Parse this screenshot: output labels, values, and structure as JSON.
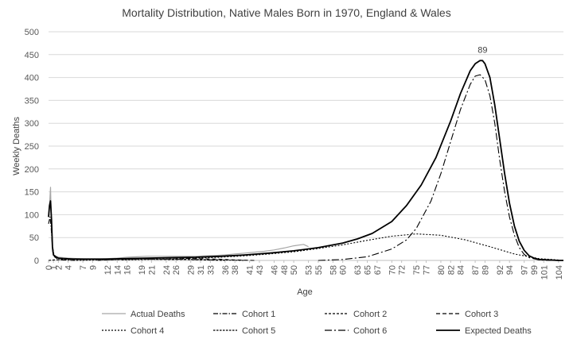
{
  "chart_data": {
    "type": "line",
    "title": "Mortality Distribution, Native Males Born in 1970, England & Wales",
    "xlabel": "Age",
    "ylabel": "Weekly Deaths",
    "xlim": [
      0,
      105
    ],
    "ylim": [
      0,
      500
    ],
    "yticks": [
      0,
      50,
      100,
      150,
      200,
      250,
      300,
      350,
      400,
      450,
      500
    ],
    "xticks": [
      0,
      1,
      2,
      4,
      7,
      9,
      12,
      14,
      16,
      19,
      21,
      24,
      26,
      29,
      31,
      33,
      36,
      38,
      41,
      43,
      46,
      48,
      50,
      53,
      55,
      58,
      60,
      63,
      65,
      67,
      70,
      72,
      75,
      77,
      80,
      82,
      84,
      87,
      89,
      92,
      94,
      97,
      99,
      101,
      104
    ],
    "grid": true,
    "legend_position": "bottom",
    "annotations": [
      {
        "text": "89",
        "x": 88.5,
        "y": 437
      }
    ],
    "colors": {
      "actual": "#a6a6a6",
      "lines": "#000000",
      "grid": "#d9d9d9",
      "axis": "#bfbfbf"
    },
    "series": [
      {
        "name": "Actual Deaths",
        "style": "solid-grey",
        "x": [
          0,
          0.2,
          0.4,
          0.6,
          0.8,
          1.0,
          1.5,
          2,
          3,
          4,
          6,
          8,
          10,
          12,
          14,
          16,
          18,
          20,
          22,
          24,
          26,
          28,
          30,
          32,
          34,
          36,
          38,
          40,
          42,
          44,
          46,
          48,
          50,
          52,
          53
        ],
        "y": [
          95,
          120,
          160,
          70,
          20,
          12,
          9,
          7,
          6,
          5,
          4,
          3,
          3,
          4,
          5,
          7,
          8,
          9,
          9,
          9,
          9,
          9,
          9,
          10,
          11,
          12,
          14,
          16,
          18,
          20,
          23,
          27,
          32,
          35,
          30
        ]
      },
      {
        "name": "Cohort 1",
        "style": "dash-dot",
        "x": [
          0,
          0.3,
          0.5,
          0.8,
          1.2,
          2,
          3,
          5
        ],
        "y": [
          80,
          95,
          75,
          30,
          8,
          2,
          1,
          0
        ]
      },
      {
        "name": "Cohort 2",
        "style": "short-dash",
        "x": [
          0,
          1,
          3,
          5,
          8,
          12,
          16,
          20,
          24,
          28,
          32,
          36
        ],
        "y": [
          0,
          1,
          2,
          2,
          2,
          3,
          3,
          3,
          2,
          2,
          1,
          0
        ]
      },
      {
        "name": "Cohort 3",
        "style": "long-dash",
        "x": [
          10,
          14,
          18,
          22,
          26,
          30,
          34,
          38,
          42
        ],
        "y": [
          0,
          2,
          4,
          5,
          5,
          4,
          3,
          1,
          0
        ]
      },
      {
        "name": "Cohort 4",
        "style": "dotted",
        "x": [
          15,
          20,
          25,
          30,
          35,
          40,
          45,
          50,
          55,
          60,
          65,
          70,
          75,
          80,
          85,
          90,
          95,
          100,
          104
        ],
        "y": [
          1,
          2,
          3,
          5,
          7,
          10,
          14,
          19,
          26,
          34,
          44,
          53,
          58,
          55,
          45,
          30,
          14,
          4,
          1
        ]
      },
      {
        "name": "Cohort 5",
        "style": "fine-dash",
        "x": [
          5,
          10,
          15,
          20,
          25,
          30,
          35,
          40
        ],
        "y": [
          0,
          1,
          2,
          3,
          3,
          2,
          1,
          0
        ]
      },
      {
        "name": "Cohort 6",
        "style": "dash-dot-long",
        "x": [
          55,
          60,
          65,
          70,
          73,
          75,
          78,
          80,
          82,
          84,
          86,
          87,
          88,
          89,
          90,
          91,
          92,
          93,
          94,
          95,
          96,
          97,
          98,
          100,
          102,
          104
        ],
        "y": [
          0,
          2,
          8,
          25,
          45,
          70,
          130,
          190,
          260,
          330,
          385,
          403,
          406,
          395,
          360,
          300,
          220,
          150,
          95,
          55,
          28,
          13,
          6,
          1,
          0,
          0
        ]
      },
      {
        "name": "Expected Deaths",
        "style": "solid-bold",
        "x": [
          0,
          0.2,
          0.4,
          0.6,
          0.8,
          1.0,
          1.5,
          2,
          3,
          5,
          8,
          12,
          16,
          20,
          25,
          30,
          35,
          40,
          45,
          50,
          55,
          60,
          63,
          66,
          70,
          73,
          76,
          79,
          82,
          84,
          86,
          87,
          88,
          88.5,
          89,
          90,
          91,
          92,
          93,
          94,
          95,
          96,
          97,
          98,
          99,
          100,
          102,
          104,
          105
        ],
        "y": [
          95,
          120,
          130,
          90,
          30,
          12,
          8,
          5,
          4,
          3,
          3,
          3,
          4,
          5,
          6,
          7,
          9,
          12,
          16,
          21,
          28,
          38,
          47,
          59,
          85,
          120,
          165,
          225,
          305,
          365,
          415,
          430,
          437,
          437,
          430,
          400,
          340,
          265,
          190,
          125,
          75,
          42,
          22,
          10,
          5,
          2,
          1,
          0,
          0
        ]
      }
    ]
  }
}
